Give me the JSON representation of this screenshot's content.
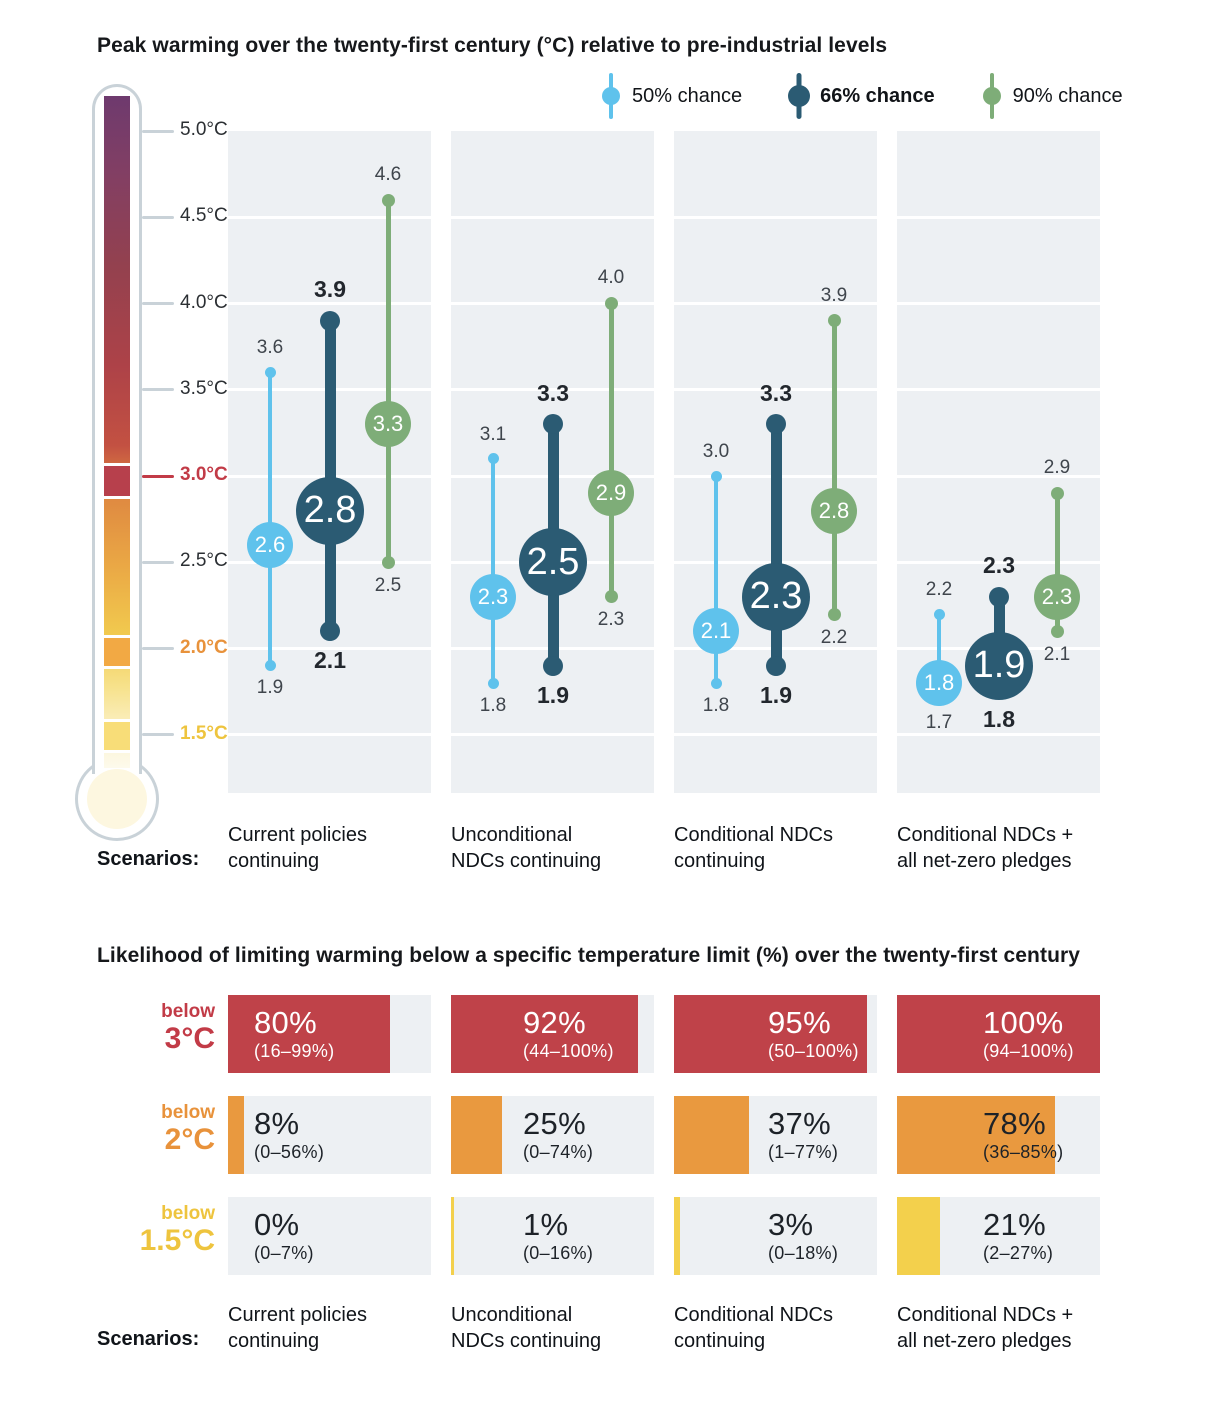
{
  "figure": {
    "top_title": "Peak warming over the twenty-first century (°C) relative to pre-industrial levels",
    "bottom_title": "Likelihood of limiting warming below a specific temperature limit (%) over the twenty-first century",
    "scenarios_label": "Scenarios:",
    "scenario_labels": [
      [
        "Current policies",
        "continuing"
      ],
      [
        "Unconditional",
        "NDCs continuing"
      ],
      [
        "Conditional NDCs",
        "continuing"
      ],
      [
        "Conditional NDCs +",
        "all net-zero pledges"
      ]
    ],
    "legend": [
      {
        "label": "50% chance",
        "color": "#5fc2ec",
        "bold": false
      },
      {
        "label": "66% chance",
        "color": "#2b5b73",
        "bold": true
      },
      {
        "label": "90% chance",
        "color": "#7ead78",
        "bold": false
      }
    ],
    "axis_ticks": [
      {
        "value": 5.0,
        "label": "5.0°C",
        "color": "#2b2f33",
        "bold": false,
        "tick_color": "#c9d2d8"
      },
      {
        "value": 4.5,
        "label": "4.5°C",
        "color": "#2b2f33",
        "bold": false,
        "tick_color": "#c9d2d8"
      },
      {
        "value": 4.0,
        "label": "4.0°C",
        "color": "#2b2f33",
        "bold": false,
        "tick_color": "#c9d2d8"
      },
      {
        "value": 3.5,
        "label": "3.5°C",
        "color": "#2b2f33",
        "bold": false,
        "tick_color": "#c9d2d8"
      },
      {
        "value": 3.0,
        "label": "3.0°C",
        "color": "#c23b47",
        "bold": true,
        "tick_color": "#c23b47"
      },
      {
        "value": 2.5,
        "label": "2.5°C",
        "color": "#2b2f33",
        "bold": false,
        "tick_color": "#c9d2d8"
      },
      {
        "value": 2.0,
        "label": "2.0°C",
        "color": "#e8923b",
        "bold": true,
        "tick_color": "#c9d2d8"
      },
      {
        "value": 1.5,
        "label": "1.5°C",
        "color": "#eec43e",
        "bold": true,
        "tick_color": "#c9d2d8"
      }
    ]
  },
  "chart_data": [
    {
      "type": "scatter",
      "subtype": "range-lollipop",
      "title": "Peak warming over the twenty-first century (°C) relative to pre-industrial levels",
      "ylabel": "°C relative to pre-industrial levels",
      "ylim": [
        1.15,
        5.0
      ],
      "yticks": [
        5.0,
        4.5,
        4.0,
        3.5,
        3.0,
        2.5,
        2.0,
        1.5
      ],
      "grid": true,
      "legend_position": "top-right",
      "categories": [
        "Current policies continuing",
        "Unconditional NDCs continuing",
        "Conditional NDCs continuing",
        "Conditional NDCs + all net-zero pledges"
      ],
      "series": [
        {
          "name": "50% chance",
          "key": "50",
          "color": "#5fc2ec",
          "points": [
            {
              "min": 1.9,
              "mid": 2.6,
              "max": 3.6
            },
            {
              "min": 1.8,
              "mid": 2.3,
              "max": 3.1
            },
            {
              "min": 1.8,
              "mid": 2.1,
              "max": 3.0
            },
            {
              "min": 1.7,
              "mid": 1.8,
              "max": 2.2
            }
          ]
        },
        {
          "name": "66% chance",
          "key": "66",
          "color": "#2b5b73",
          "points": [
            {
              "min": 2.1,
              "mid": 2.8,
              "max": 3.9
            },
            {
              "min": 1.9,
              "mid": 2.5,
              "max": 3.3
            },
            {
              "min": 1.9,
              "mid": 2.3,
              "max": 3.3
            },
            {
              "min": 1.8,
              "mid": 1.9,
              "max": 2.3
            }
          ]
        },
        {
          "name": "90% chance",
          "key": "90",
          "color": "#7ead78",
          "points": [
            {
              "min": 2.5,
              "mid": 3.3,
              "max": 4.6
            },
            {
              "min": 2.3,
              "mid": 2.9,
              "max": 4.0
            },
            {
              "min": 2.2,
              "mid": 2.8,
              "max": 3.9
            },
            {
              "min": 2.1,
              "mid": 2.3,
              "max": 2.9
            }
          ]
        }
      ]
    },
    {
      "type": "bar",
      "subtype": "likelihood-table",
      "title": "Likelihood of limiting warming below a specific temperature limit (%) over the twenty-first century",
      "xlim": [
        0,
        100
      ],
      "categories": [
        "Current policies continuing",
        "Unconditional NDCs continuing",
        "Conditional NDCs continuing",
        "Conditional NDCs + all net-zero pledges"
      ],
      "rows": [
        {
          "label_top": "below",
          "label": "3°C",
          "color": "#bf4249",
          "label_color": "#c23b47",
          "values": [
            80,
            92,
            95,
            100
          ],
          "value_labels": [
            "80%",
            "92%",
            "95%",
            "100%"
          ],
          "ranges": [
            "(16–99%)",
            "(44–100%)",
            "(50–100%)",
            "(94–100%)"
          ],
          "text_color": "#ffffff"
        },
        {
          "label_top": "below",
          "label": "2°C",
          "color": "#e9993f",
          "label_color": "#e8923b",
          "values": [
            8,
            25,
            37,
            78
          ],
          "value_labels": [
            "8%",
            "25%",
            "37%",
            "78%"
          ],
          "ranges": [
            "(0–56%)",
            "(0–74%)",
            "(1–77%)",
            "(36–85%)"
          ],
          "text_color": "#1d2228"
        },
        {
          "label_top": "below",
          "label": "1.5°C",
          "color": "#f3d04c",
          "label_color": "#eec43e",
          "values": [
            0,
            1,
            3,
            21
          ],
          "value_labels": [
            "0%",
            "1%",
            "3%",
            "21%"
          ],
          "ranges": [
            "(0–7%)",
            "(0–16%)",
            "(0–18%)",
            "(2–27%)"
          ],
          "text_color": "#1d2228"
        }
      ]
    }
  ]
}
